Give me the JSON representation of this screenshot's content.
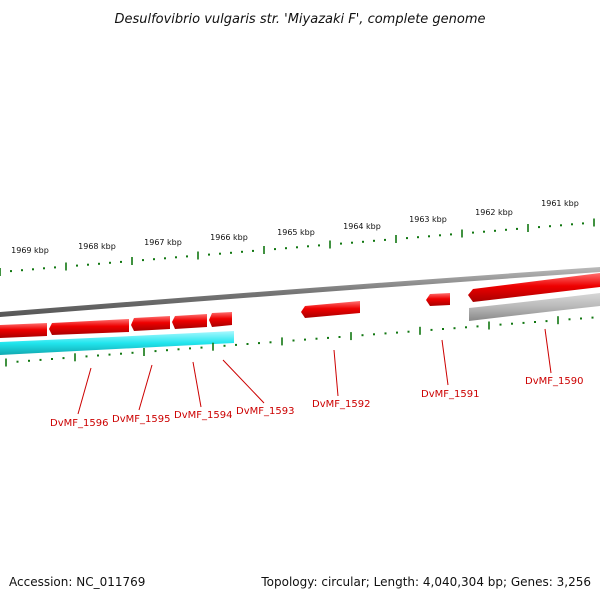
{
  "title": "Desulfovibrio vulgaris str. 'Miyazaki F', complete genome",
  "footer": {
    "accession": "Accession: NC_011769",
    "summary": "Topology: circular; Length: 4,040,304 bp; Genes: 3,256"
  },
  "scale_labels": [
    "1969 kbp",
    "1968 kbp",
    "1967 kbp",
    "1966 kbp",
    "1965 kbp",
    "1964 kbp",
    "1963 kbp",
    "1962 kbp",
    "1961 kbp"
  ],
  "gene_labels": [
    "DvMF_1596",
    "DvMF_1595",
    "DvMF_1594",
    "DvMF_1593",
    "DvMF_1592",
    "DvMF_1591",
    "DvMF_1590"
  ],
  "colors": {
    "gene_forward": "#ee0000",
    "gene_reverse": "#ee0000",
    "highlight": "#22e6ee",
    "backbone": "#888888",
    "secondary_track": "#bbbbbb",
    "tick": "#117711",
    "label_red": "#cc0000",
    "leader": "#cc0000"
  }
}
